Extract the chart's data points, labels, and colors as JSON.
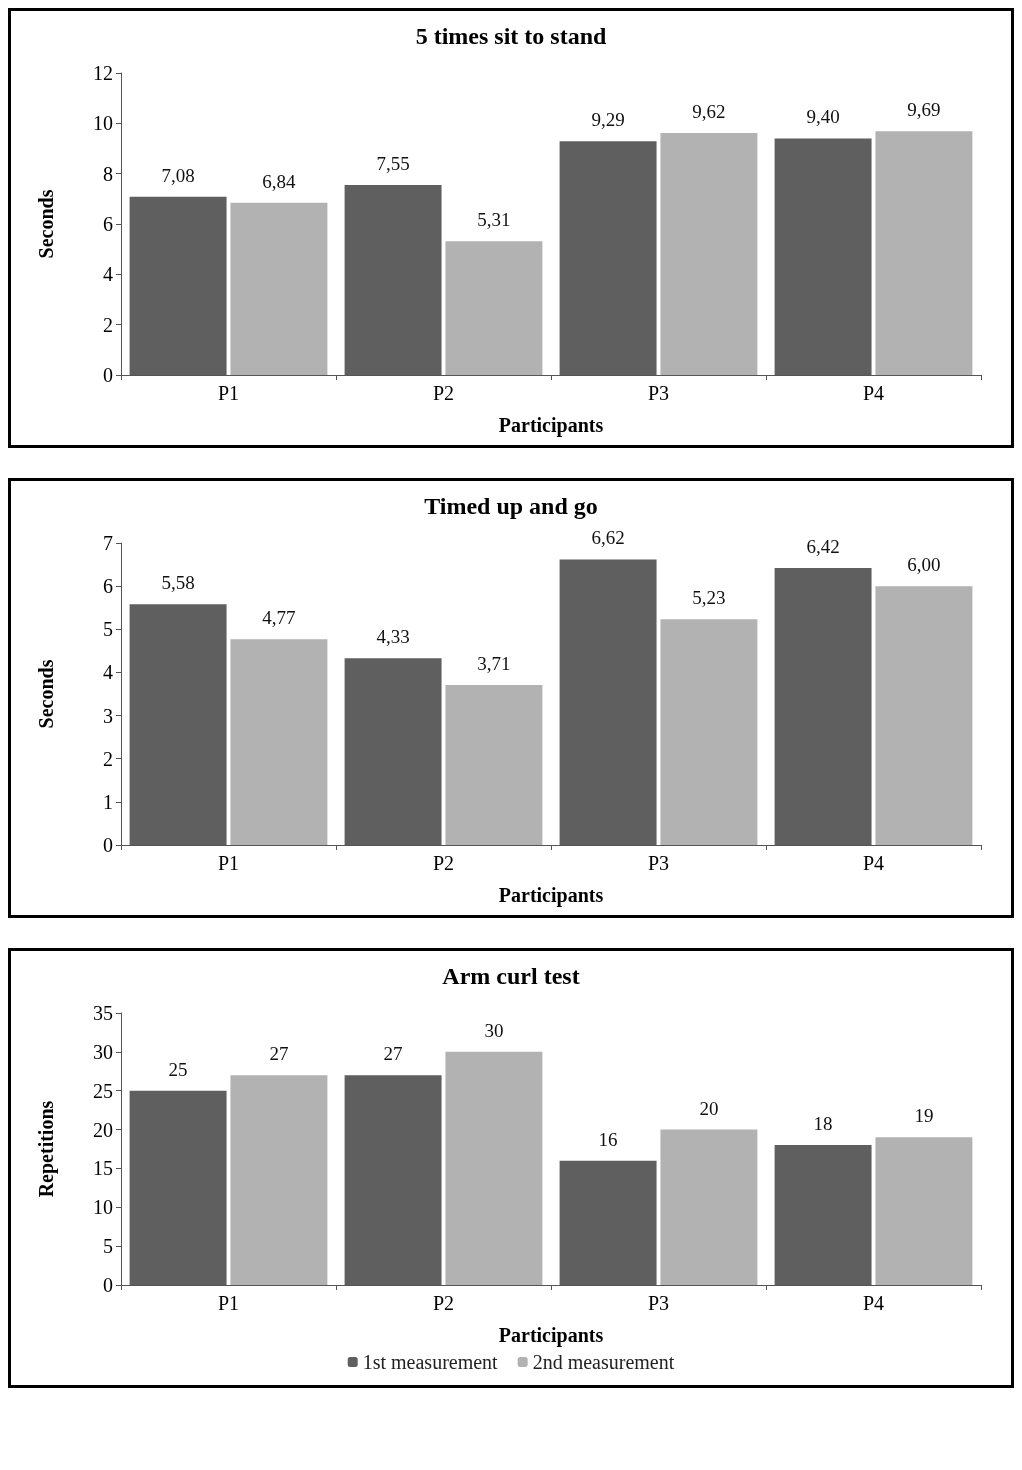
{
  "chart_data": [
    {
      "type": "bar",
      "title": "5 times sit to stand",
      "xlabel": "Participants",
      "ylabel": "Seconds",
      "categories": [
        "P1",
        "P2",
        "P3",
        "P4"
      ],
      "series": [
        {
          "color": "#5f5f5f",
          "values": [
            7.08,
            7.55,
            9.29,
            9.4
          ],
          "value_labels": [
            "7,08",
            "7,55",
            "9,29",
            "9,40"
          ]
        },
        {
          "color": "#b2b2b2",
          "values": [
            6.84,
            5.31,
            9.62,
            9.69
          ],
          "value_labels": [
            "6,84",
            "5,31",
            "9,62",
            "9,69"
          ]
        }
      ],
      "ylim": [
        0,
        12
      ],
      "yticks": [
        0,
        2,
        4,
        6,
        8,
        10,
        12
      ],
      "grid": false,
      "legend": false
    },
    {
      "type": "bar",
      "title": "Timed up and go",
      "xlabel": "Participants",
      "ylabel": "Seconds",
      "categories": [
        "P1",
        "P2",
        "P3",
        "P4"
      ],
      "series": [
        {
          "color": "#5f5f5f",
          "values": [
            5.58,
            4.33,
            6.62,
            6.42
          ],
          "value_labels": [
            "5,58",
            "4,33",
            "6,62",
            "6,42"
          ]
        },
        {
          "color": "#b2b2b2",
          "values": [
            4.77,
            3.71,
            5.23,
            6.0
          ],
          "value_labels": [
            "4,77",
            "3,71",
            "5,23",
            "6,00"
          ]
        }
      ],
      "ylim": [
        0,
        7
      ],
      "yticks": [
        0,
        1,
        2,
        3,
        4,
        5,
        6,
        7
      ],
      "grid": false,
      "legend": false
    },
    {
      "type": "bar",
      "title": "Arm curl test",
      "xlabel": "Participants",
      "ylabel": "Repetitions",
      "categories": [
        "P1",
        "P2",
        "P3",
        "P4"
      ],
      "series": [
        {
          "name": "1st measurement",
          "color": "#5f5f5f",
          "values": [
            25,
            27,
            16,
            18
          ],
          "value_labels": [
            "25",
            "27",
            "16",
            "18"
          ]
        },
        {
          "name": "2nd measurement",
          "color": "#b2b2b2",
          "values": [
            27,
            30,
            20,
            19
          ],
          "value_labels": [
            "27",
            "30",
            "20",
            "19"
          ]
        }
      ],
      "ylim": [
        0,
        35
      ],
      "yticks": [
        0,
        5,
        10,
        15,
        20,
        25,
        30,
        35
      ],
      "grid": false,
      "legend": "bottom"
    }
  ]
}
